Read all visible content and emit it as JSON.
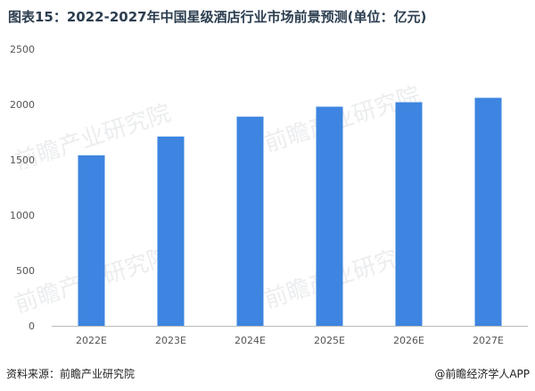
{
  "title": "图表15：2022-2027年中国星级酒店行业市场前景预测(单位：亿元)",
  "source": "资料来源：前瞻产业研究院",
  "brand": "@前瞻经济学人APP",
  "watermark": "前瞻产业研究院",
  "colors": {
    "bar": "#3d85e0",
    "axis": "#bbbbbb",
    "text": "#555555"
  },
  "chart_data": {
    "type": "bar",
    "title": "图表15：2022-2027年中国星级酒店行业市场前景预测(单位：亿元)",
    "xlabel": "",
    "ylabel": "",
    "categories": [
      "2022E",
      "2023E",
      "2024E",
      "2025E",
      "2026E",
      "2027E"
    ],
    "values": [
      1540,
      1710,
      1890,
      1980,
      2020,
      2060
    ],
    "ylim": [
      0,
      2500
    ],
    "yticks": [
      0,
      500,
      1000,
      1500,
      2000,
      2500
    ],
    "grid": false,
    "legend": "none"
  }
}
